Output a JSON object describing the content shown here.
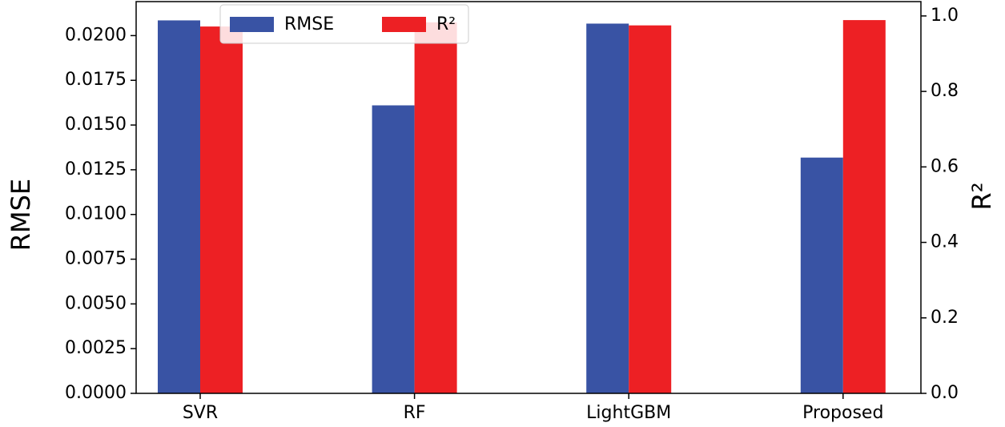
{
  "chart_data": {
    "type": "bar",
    "categories": [
      "SVR",
      "RF",
      "LightGBM",
      "Proposed"
    ],
    "series": [
      {
        "name": "RMSE",
        "color": "#3953a4",
        "values": [
          0.02085,
          0.0161,
          0.02067,
          0.01318
        ]
      },
      {
        "name": "R²",
        "color": "#ed2024",
        "axis": "y2",
        "values": [
          0.972,
          0.983,
          0.975,
          0.989
        ]
      }
    ],
    "ylabel": "RMSE",
    "y2label": "R²",
    "ylim": [
      0,
      0.0219
    ],
    "yticks": [
      {
        "value": 0,
        "label": "0.0000"
      },
      {
        "value": 0.0025,
        "label": "0.0025"
      },
      {
        "value": 0.005,
        "label": "0.0050"
      },
      {
        "value": 0.0075,
        "label": "0.0075"
      },
      {
        "value": 0.01,
        "label": "0.0100"
      },
      {
        "value": 0.0125,
        "label": "0.0125"
      },
      {
        "value": 0.015,
        "label": "0.0150"
      },
      {
        "value": 0.0175,
        "label": "0.0175"
      },
      {
        "value": 0.02,
        "label": "0.0200"
      }
    ],
    "y2lim": [
      0,
      1.038
    ],
    "y2ticks": [
      {
        "value": 0,
        "label": "0.0"
      },
      {
        "value": 0.2,
        "label": "0.2"
      },
      {
        "value": 0.4,
        "label": "0.4"
      },
      {
        "value": 0.6,
        "label": "0.6"
      },
      {
        "value": 0.8,
        "label": "0.8"
      },
      {
        "value": 1,
        "label": "1.0"
      }
    ],
    "legend": "upper left"
  }
}
